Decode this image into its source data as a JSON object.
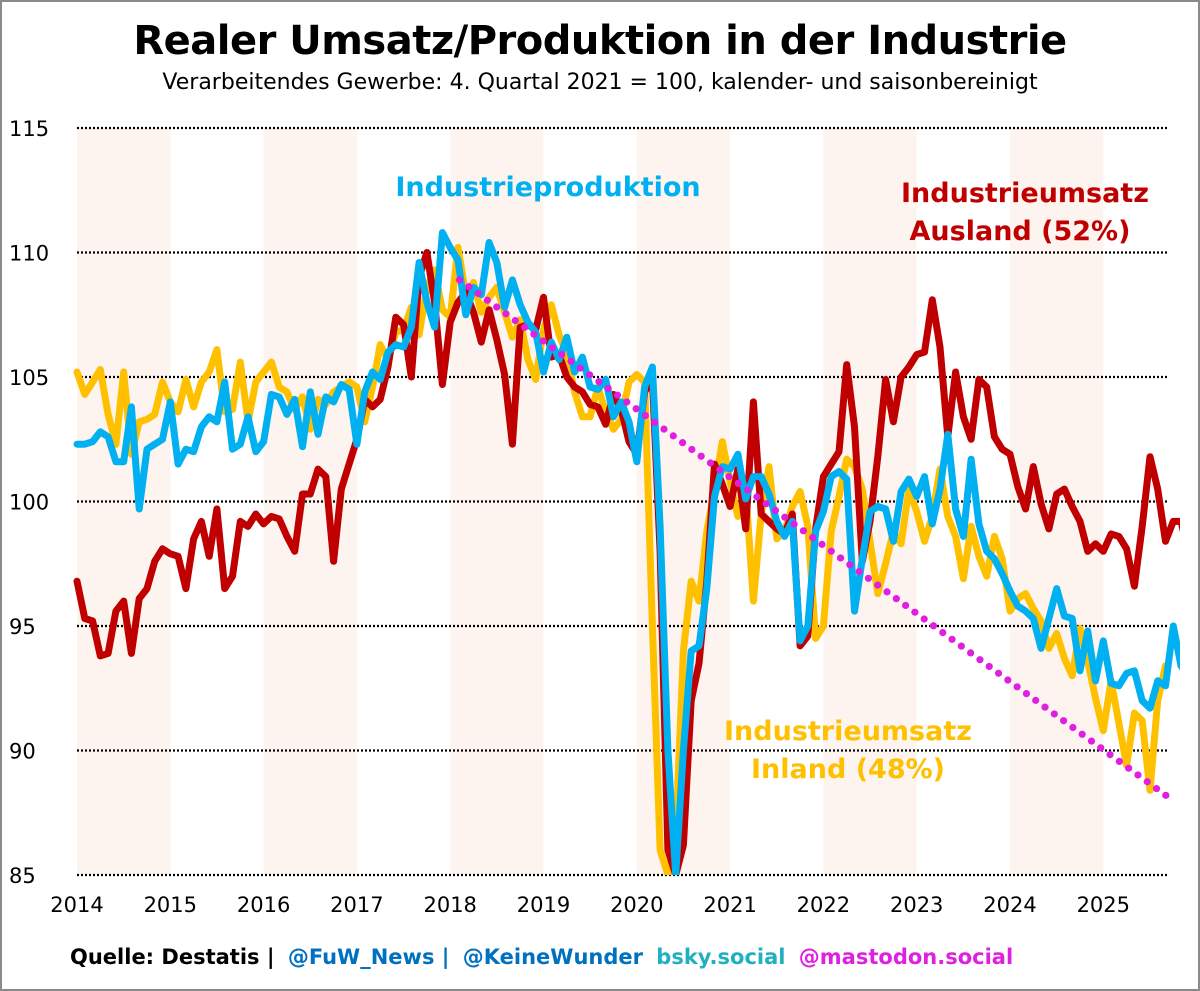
{
  "chart_data": {
    "type": "line",
    "title": "Realer Umsatz/Produktion in der Industrie",
    "subtitle": "Verarbeitendes Gewerbe: 4. Quartal 2021 = 100, kalender- und saisonbereinigt",
    "xlabel": "",
    "ylabel": "",
    "ylim": [
      85,
      115
    ],
    "xlim": [
      2014,
      2025.75
    ],
    "yticks": [
      115,
      110,
      105,
      100,
      95,
      90,
      85
    ],
    "xticks": [
      "2014",
      "2015",
      "2016",
      "2017",
      "2018",
      "2019",
      "2020",
      "2021",
      "2022",
      "2023",
      "2024",
      "2025"
    ],
    "grid": "horizontal dotted",
    "shaded_years": [
      2014,
      2016,
      2018,
      2020,
      2022,
      2024
    ],
    "x_start": 2014.0,
    "x_step_months": 1,
    "series": [
      {
        "name": "Industrieumsatz Inland (48%)",
        "color": "#ffc000",
        "values": [
          105.2,
          104.3,
          104.8,
          105.3,
          103.5,
          102.3,
          105.2,
          101.9,
          103.2,
          103.3,
          103.5,
          104.8,
          104.0,
          103.6,
          104.9,
          103.8,
          104.8,
          105.2,
          106.1,
          103.6,
          103.7,
          105.6,
          103.2,
          104.8,
          105.2,
          105.6,
          104.6,
          104.4,
          103.7,
          104.2,
          102.9,
          104.1,
          103.9,
          104.4,
          104.6,
          104.8,
          104.6,
          103.2,
          104.6,
          106.3,
          105.7,
          106.8,
          106.9,
          107.8,
          106.7,
          108.6,
          109.3,
          107.7,
          107.4,
          110.2,
          108.3,
          108.8,
          107.6,
          108.2,
          108.6,
          107.6,
          106.6,
          107.3,
          105.7,
          104.9,
          106.9,
          107.9,
          106.7,
          105.9,
          104.4,
          103.4,
          103.4,
          104.6,
          103.6,
          102.9,
          103.3,
          104.8,
          105.1,
          104.8,
          95.0,
          86.0,
          85.0,
          86.5,
          94.0,
          96.8,
          96.0,
          98.8,
          100.5,
          102.4,
          100.8,
          99.4,
          100.5,
          96.0,
          99.5,
          101.4,
          98.5,
          98.8,
          99.8,
          100.4,
          99.0,
          94.5,
          95.0,
          98.8,
          100.2,
          101.7,
          101.4,
          100.5,
          98.4,
          96.3,
          97.5,
          98.8,
          98.3,
          100.5,
          99.6,
          98.4,
          99.4,
          101.3,
          99.4,
          98.6,
          96.9,
          99.0,
          97.8,
          97.0,
          98.6,
          97.7,
          95.6,
          96.1,
          96.3,
          95.7,
          95.2,
          94.1,
          94.7,
          93.7,
          93.0,
          94.9,
          93.6,
          92.1,
          90.8,
          92.8,
          91.1,
          89.4,
          91.5,
          91.2,
          88.4,
          92.0,
          93.4
        ]
      },
      {
        "name": "Industrieproduktion",
        "color": "#00b0f0",
        "values": [
          102.3,
          102.3,
          102.4,
          102.8,
          102.6,
          101.6,
          101.6,
          103.8,
          99.7,
          102.1,
          102.3,
          102.5,
          104.0,
          101.5,
          102.1,
          102.0,
          103.0,
          103.4,
          103.2,
          104.8,
          102.1,
          102.3,
          103.4,
          102.0,
          102.4,
          104.3,
          104.2,
          103.5,
          104.1,
          102.2,
          104.4,
          102.7,
          104.2,
          104.0,
          104.7,
          104.5,
          102.3,
          104.4,
          105.2,
          104.9,
          106.0,
          106.3,
          106.2,
          107.0,
          109.6,
          108.0,
          107.0,
          110.8,
          110.2,
          109.7,
          107.5,
          108.6,
          108.3,
          110.4,
          109.6,
          107.8,
          108.9,
          107.9,
          107.2,
          106.8,
          105.2,
          106.4,
          105.7,
          106.6,
          105.2,
          105.8,
          104.6,
          104.5,
          104.9,
          103.4,
          104.0,
          103.2,
          101.6,
          104.6,
          105.4,
          99.0,
          90.0,
          85.0,
          90.0,
          94.0,
          94.2,
          96.5,
          100.2,
          101.4,
          101.3,
          101.9,
          100.1,
          101.0,
          101.0,
          100.3,
          99.2,
          98.6,
          99.2,
          94.4,
          95.0,
          98.8,
          99.6,
          101.0,
          101.2,
          100.9,
          95.6,
          97.7,
          99.6,
          99.8,
          99.7,
          98.4,
          100.4,
          100.9,
          100.2,
          101.0,
          99.1,
          100.5,
          102.7,
          99.7,
          98.6,
          101.7,
          99.1,
          98.0,
          97.7,
          97.1,
          96.4,
          95.8,
          95.6,
          95.3,
          94.1,
          95.3,
          96.5,
          95.4,
          95.3,
          93.2,
          94.8,
          92.8,
          94.4,
          92.7,
          92.6,
          93.1,
          93.2,
          92.0,
          91.7,
          92.8,
          92.6,
          95.0,
          93.4,
          93.0,
          92.9,
          94.4
        ]
      },
      {
        "name": "Industrieumsatz Ausland (52%)",
        "color": "#c00000",
        "values": [
          96.8,
          95.3,
          95.2,
          93.8,
          93.9,
          95.6,
          96.0,
          93.9,
          96.1,
          96.5,
          97.6,
          98.1,
          97.9,
          97.8,
          96.5,
          98.5,
          99.2,
          97.8,
          99.7,
          96.5,
          97.0,
          99.2,
          99.0,
          99.5,
          99.1,
          99.4,
          99.3,
          98.6,
          98.0,
          100.3,
          100.3,
          101.3,
          101.0,
          97.6,
          100.5,
          101.5,
          102.5,
          104.1,
          103.8,
          104.1,
          105.4,
          107.4,
          107.1,
          105.0,
          109.0,
          110.0,
          108.0,
          104.7,
          107.2,
          108.0,
          108.4,
          107.6,
          106.4,
          107.7,
          106.5,
          105.1,
          102.3,
          107.0,
          107.1,
          106.9,
          108.2,
          105.8,
          105.9,
          105.0,
          104.6,
          104.4,
          103.9,
          103.8,
          103.1,
          104.3,
          103.7,
          102.4,
          101.9,
          104.4,
          104.9,
          98.0,
          86.0,
          85.0,
          86.2,
          92.0,
          93.5,
          96.8,
          101.5,
          100.7,
          99.8,
          101.3,
          98.9,
          104.0,
          99.5,
          99.2,
          98.9,
          98.7,
          99.5,
          94.2,
          94.6,
          98.9,
          101.0,
          101.5,
          102.0,
          105.5,
          103.0,
          97.6,
          99.2,
          101.8,
          104.9,
          103.2,
          105.0,
          105.4,
          105.9,
          106.0,
          108.1,
          106.2,
          102.6,
          105.2,
          103.4,
          102.5,
          104.9,
          104.6,
          102.6,
          102.1,
          101.9,
          100.6,
          99.7,
          101.4,
          99.9,
          98.9,
          100.3,
          100.5,
          99.8,
          99.2,
          98.0,
          98.3,
          98.0,
          98.7,
          98.6,
          98.1,
          96.6,
          99.0,
          101.8,
          100.5,
          98.4,
          99.2,
          99.2,
          97.9
        ]
      },
      {
        "name": "Trend",
        "color": "#e020e0",
        "style": "dotted",
        "x_from": 2018.1,
        "x_to": 2025.67,
        "y_from": 108.9,
        "y_to": 88.2
      }
    ],
    "annotations": [
      {
        "text": "Industrieproduktion",
        "color": "#00b0f0",
        "anchor": "top-left"
      },
      {
        "text": "Industrieumsatz",
        "text2": "Ausland (52%)",
        "color": "#c00000",
        "anchor": "top-right"
      },
      {
        "text": "Industrieumsatz",
        "text2": "Inland (48%)",
        "color": "#ffc000",
        "anchor": "bottom-center"
      }
    ]
  },
  "footer": {
    "source": "Quelle: Destatis |",
    "handle1": "@FuW_News |",
    "handle2": "@KeineWunder",
    "bsky": "bsky.social",
    "mastodon": "@mastodon.social",
    "colors": {
      "source": "#000000",
      "handle1": "#0070c0",
      "handle2": "#0070c0",
      "bsky": "#20b0c0",
      "mastodon": "#e020e0"
    }
  }
}
